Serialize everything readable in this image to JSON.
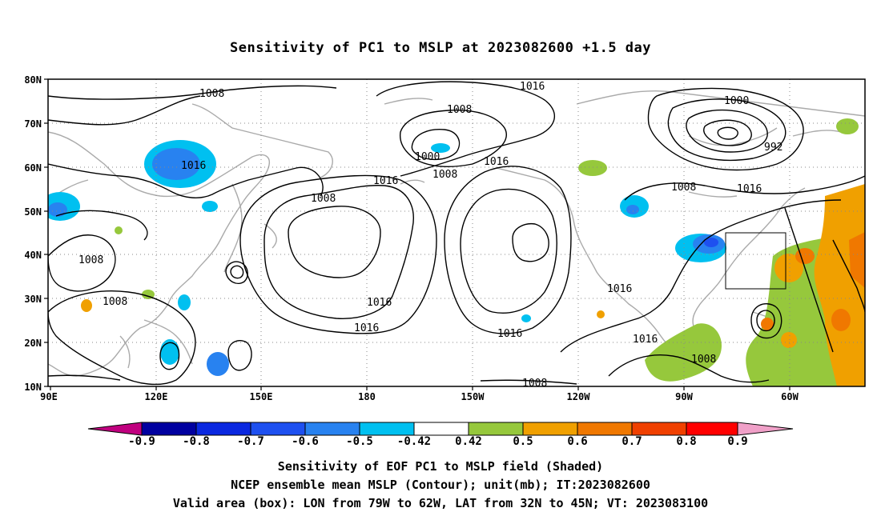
{
  "title": "Sensitivity of PC1 to MSLP at 2023082600 +1.5 day",
  "lat_labels": [
    "80N",
    "70N",
    "60N",
    "50N",
    "40N",
    "30N",
    "20N",
    "10N"
  ],
  "lon_labels": [
    "90E",
    "120E",
    "150E",
    "180",
    "150W",
    "120W",
    "90W",
    "60W"
  ],
  "contour_labels": [
    "1008",
    "1008",
    "1008",
    "1008",
    "1008",
    "1008",
    "1008",
    "1000",
    "1016",
    "1016",
    "1016",
    "1016",
    "1016",
    "1016",
    "1016",
    "1016",
    "1016",
    "1016",
    "1000",
    "992",
    "1008",
    "1008"
  ],
  "colorbar": {
    "labels": [
      "-0.9",
      "-0.8",
      "-0.7",
      "-0.6",
      "-0.5",
      "-0.42",
      "0.42",
      "0.5",
      "0.6",
      "0.7",
      "0.8",
      "0.9"
    ],
    "colors": [
      "#c0007f",
      "#0000a0",
      "#0a28e0",
      "#1e50f0",
      "#2882f0",
      "#00c0f0",
      "#ffffff",
      "#96c83c",
      "#f0a000",
      "#f07800",
      "#f04000",
      "#ff0000",
      "#f0a0c8"
    ]
  },
  "valid_box": {
    "lon": [
      "79W",
      "62W"
    ],
    "lat": [
      "32N",
      "45N"
    ]
  },
  "captions": [
    "Sensitivity of EOF PC1 to MSLP field (Shaded)",
    "NCEP ensemble mean MSLP (Contour); unit(mb); IT:2023082600",
    "Valid area (box): LON from 79W to 62W, LAT from 32N to 45N; VT: 2023083100"
  ]
}
